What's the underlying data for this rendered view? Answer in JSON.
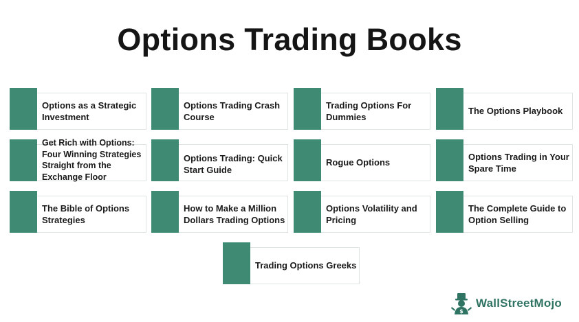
{
  "title": "Options Trading Books",
  "books": [
    "Options as a Strategic Investment",
    "Options Trading Crash Course",
    "Trading Options For Dummies",
    "The Options Playbook",
    "Get Rich with Options: Four Winning Strategies Straight from the Exchange Floor",
    "Options Trading: Quick Start Guide",
    "Rogue Options",
    "Options Trading in Your Spare Time",
    "The Bible of Options Strategies",
    "How to Make a Million Dollars Trading Options",
    "Options Volatility and Pricing",
    "The Complete Guide to Option Selling",
    "Trading Options Greeks"
  ],
  "logo": {
    "text": "WallStreetMojo",
    "icon": "mojo-mascot-icon"
  },
  "colors": {
    "accent": "#3e8a73",
    "card_border": "#dde4e2",
    "title": "#151515",
    "logo_text": "#2f7462"
  }
}
